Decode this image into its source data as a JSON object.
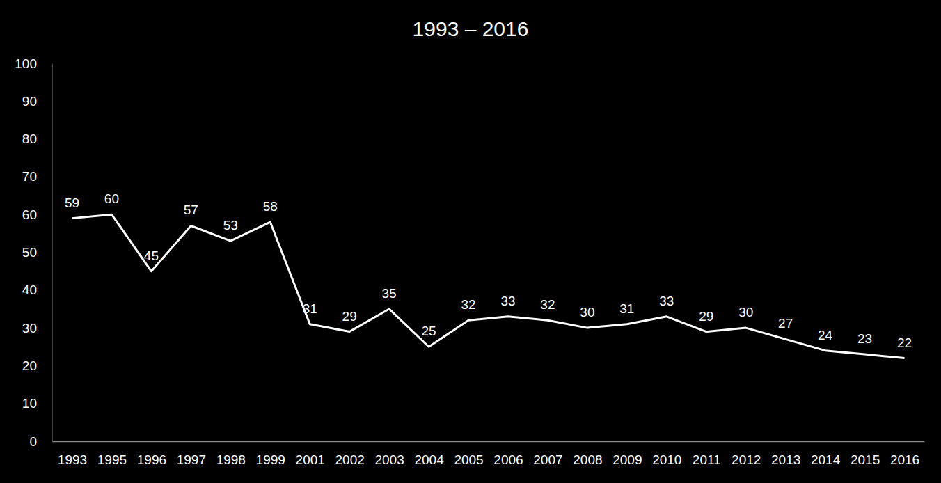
{
  "chart_data": {
    "type": "line",
    "title": "1993 – 2016",
    "categories": [
      "1993",
      "1995",
      "1996",
      "1997",
      "1998",
      "1999",
      "2001",
      "2002",
      "2003",
      "2004",
      "2005",
      "2006",
      "2007",
      "2008",
      "2009",
      "2010",
      "2011",
      "2012",
      "2013",
      "2014",
      "2015",
      "2016"
    ],
    "values": [
      59,
      60,
      45,
      57,
      53,
      58,
      31,
      29,
      35,
      25,
      32,
      33,
      32,
      30,
      31,
      33,
      29,
      30,
      27,
      24,
      23,
      22
    ],
    "color": "#ffffff",
    "ylim": [
      0,
      100
    ],
    "yticks": [
      0,
      10,
      20,
      30,
      40,
      50,
      60,
      70,
      80,
      90,
      100
    ],
    "grid": false,
    "data_labels": true
  }
}
